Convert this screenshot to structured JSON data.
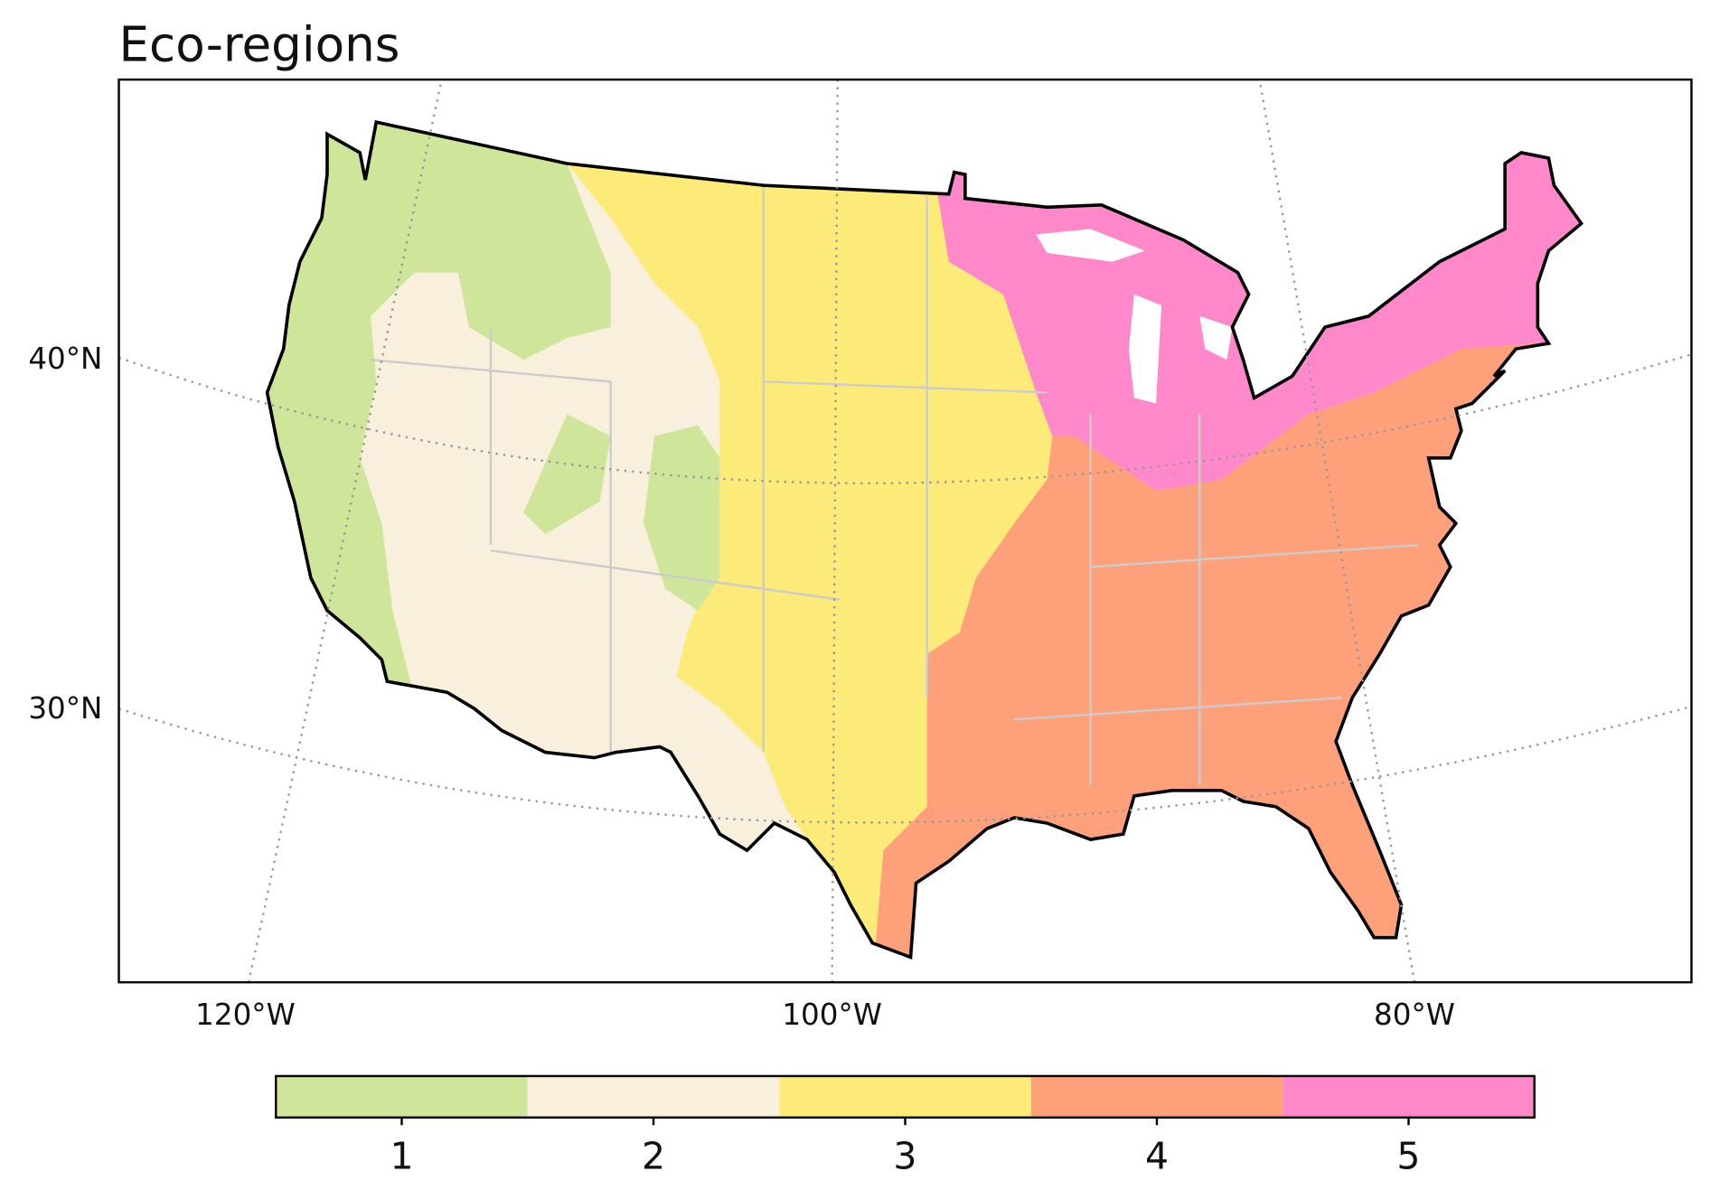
{
  "title": "Eco-regions",
  "gridlines": {
    "lat_labels": [
      "40°N",
      "30°N"
    ],
    "lon_labels": [
      "120°W",
      "100°W",
      "80°W"
    ]
  },
  "colorbar": {
    "ticks": [
      1,
      2,
      3,
      4,
      5
    ],
    "colors": [
      "#cfe69a",
      "#f8f0dc",
      "#fdeb79",
      "#fea07a",
      "#fe88c9"
    ]
  }
}
